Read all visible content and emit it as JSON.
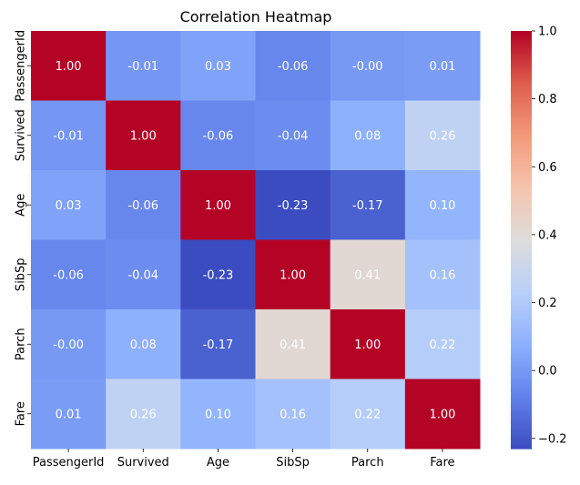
{
  "chart_data": {
    "type": "heatmap",
    "title": "Correlation Heatmap",
    "x_categories": [
      "PassengerId",
      "Survived",
      "Age",
      "SibSp",
      "Parch",
      "Fare"
    ],
    "y_categories": [
      "PassengerId",
      "Survived",
      "Age",
      "SibSp",
      "Parch",
      "Fare"
    ],
    "values": [
      [
        1.0,
        -0.01,
        0.03,
        -0.06,
        -0.0,
        0.01
      ],
      [
        -0.01,
        1.0,
        -0.06,
        -0.04,
        0.08,
        0.26
      ],
      [
        0.03,
        -0.06,
        1.0,
        -0.23,
        -0.17,
        0.1
      ],
      [
        -0.06,
        -0.04,
        -0.23,
        1.0,
        0.41,
        0.16
      ],
      [
        -0.0,
        0.08,
        -0.17,
        0.41,
        1.0,
        0.22
      ],
      [
        0.01,
        0.26,
        0.1,
        0.16,
        0.22,
        1.0
      ]
    ],
    "cell_labels": [
      [
        "1.00",
        "-0.01",
        "0.03",
        "-0.06",
        "-0.00",
        "0.01"
      ],
      [
        "-0.01",
        "1.00",
        "-0.06",
        "-0.04",
        "0.08",
        "0.26"
      ],
      [
        "0.03",
        "-0.06",
        "1.00",
        "-0.23",
        "-0.17",
        "0.10"
      ],
      [
        "-0.06",
        "-0.04",
        "-0.23",
        "1.00",
        "0.41",
        "0.16"
      ],
      [
        "-0.00",
        "0.08",
        "-0.17",
        "0.41",
        "1.00",
        "0.22"
      ],
      [
        "0.01",
        "0.26",
        "0.10",
        "0.16",
        "0.22",
        "1.00"
      ]
    ],
    "colormap": "coolwarm",
    "colorbar": {
      "min": -0.23,
      "max": 1.0,
      "ticks": [
        -0.2,
        0.0,
        0.2,
        0.4,
        0.6,
        0.8,
        1.0
      ],
      "tick_labels": [
        "−0.2",
        "0.0",
        "0.2",
        "0.4",
        "0.6",
        "0.8",
        "1.0"
      ]
    },
    "xlabel": "",
    "ylabel": "",
    "grid": false
  }
}
